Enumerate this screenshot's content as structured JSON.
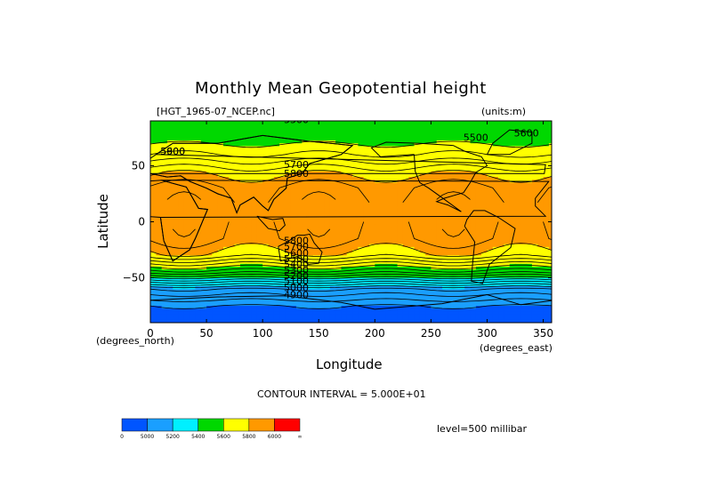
{
  "chart_data": {
    "type": "heatmap",
    "title": "Monthly Mean Geopotential height",
    "file_label": "[HGT_1965-07_NCEP.nc]",
    "units_label": "(units:m)",
    "xlabel": "Longitude",
    "ylabel": "Latitude",
    "x_unit_label": "(degrees_east)",
    "y_unit_label": "(degrees_north)",
    "xlim": [
      0,
      357.5
    ],
    "ylim": [
      -90,
      90
    ],
    "x_ticks": [
      "0",
      "50",
      "100",
      "150",
      "200",
      "250",
      "300",
      "350"
    ],
    "y_ticks": [
      "50",
      "0",
      "−50"
    ],
    "contour_interval": "CONTOUR INTERVAL = 5.000E+01",
    "level": "level=500 millibar",
    "contour_labels": [
      "5500",
      "5600",
      "5700",
      "5800",
      "5900",
      "5800",
      "5700",
      "5600",
      "5500",
      "5400",
      "5300",
      "5200",
      "5100",
      "5000",
      "4900",
      "5600",
      "5500"
    ],
    "colorbar": {
      "tick_labels": [
        "0",
        "5000",
        "5200",
        "5400",
        "5600",
        "5800",
        "6000",
        "∞"
      ],
      "colors": [
        "#0055ff",
        "#1a9fff",
        "#00f0ff",
        "#00d800",
        "#ffff00",
        "#ff9900",
        "#ff0000"
      ]
    },
    "latitude_band_values_m": [
      {
        "lat": 90,
        "value": 5550
      },
      {
        "lat": 75,
        "value": 5570
      },
      {
        "lat": 60,
        "value": 5650
      },
      {
        "lat": 45,
        "value": 5780
      },
      {
        "lat": 30,
        "value": 5860
      },
      {
        "lat": 15,
        "value": 5880
      },
      {
        "lat": 0,
        "value": 5870
      },
      {
        "lat": -15,
        "value": 5860
      },
      {
        "lat": -30,
        "value": 5780
      },
      {
        "lat": -45,
        "value": 5520
      },
      {
        "lat": -60,
        "value": 5150
      },
      {
        "lat": -75,
        "value": 5000
      },
      {
        "lat": -90,
        "value": 4950
      }
    ]
  }
}
